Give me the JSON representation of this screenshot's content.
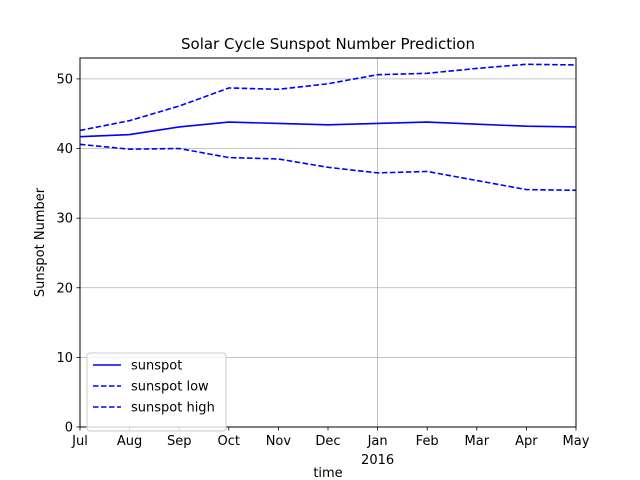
{
  "chart_data": {
    "type": "line",
    "title": "Solar Cycle Sunspot Number Prediction",
    "xlabel": "time",
    "ylabel": "Sunspot Number",
    "ylim": [
      0,
      53
    ],
    "yticks": [
      0,
      10,
      20,
      30,
      40,
      50
    ],
    "categories": [
      "Jul",
      "Aug",
      "Sep",
      "Oct",
      "Nov",
      "Dec",
      "Jan",
      "Feb",
      "Mar",
      "Apr",
      "May"
    ],
    "year_label": "2016",
    "year_label_under": "Jan",
    "grid": true,
    "legend_position": "lower-left",
    "series": [
      {
        "name": "sunspot",
        "style": "solid",
        "color": "#0000ff",
        "values": [
          41.7,
          42.0,
          43.1,
          43.8,
          43.6,
          43.4,
          43.6,
          43.8,
          43.5,
          43.2,
          43.1
        ]
      },
      {
        "name": "sunspot low",
        "style": "dashed",
        "color": "#0000ff",
        "values": [
          40.6,
          39.9,
          40.0,
          38.7,
          38.5,
          37.3,
          36.5,
          36.7,
          35.4,
          34.1,
          34.0
        ]
      },
      {
        "name": "sunspot high",
        "style": "dashed",
        "color": "#0000ff",
        "values": [
          42.6,
          44.0,
          46.1,
          48.7,
          48.5,
          49.3,
          50.6,
          50.8,
          51.5,
          52.1,
          52.0
        ]
      }
    ]
  }
}
